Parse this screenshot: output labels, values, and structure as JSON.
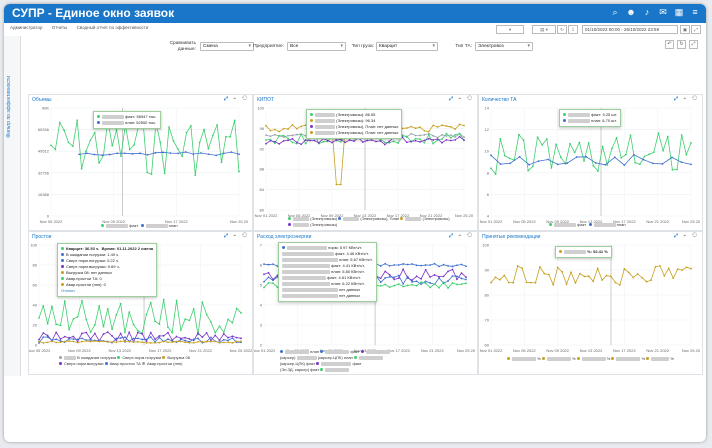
{
  "app": {
    "title": "СУПР - Единое окно заявок"
  },
  "breadcrumbs": [
    "Администратор",
    "Отчеты",
    "Сводный отчет по эффективности"
  ],
  "side_tab": {
    "label": "Фильтр по эффективности"
  },
  "date_range": "01/10/2022 00:00 - 26/10/2022 23:59",
  "filters": [
    {
      "label": "Сравнивать данные:",
      "value": "Смена"
    },
    {
      "label": "Предприятие:",
      "value": "Все"
    },
    {
      "label": "Тип груза:",
      "value": "Кварцит"
    },
    {
      "label": "Тип ТА:",
      "value": "Электровоз"
    }
  ],
  "colors": {
    "brand": "#1976c8",
    "green": "#3ecf6f",
    "blue": "#3f6fcf",
    "gold": "#c6a020",
    "purple": "#7b32c8",
    "gray": "#9aa3ad"
  },
  "charts": [
    {
      "title": "Объемы",
      "ylabels": [
        "90K",
        "65336",
        "49512",
        "32756",
        "16388",
        "0"
      ],
      "xlabels": [
        "Nov 05 2022",
        "Nov 09 2022",
        "Nov 17 2022",
        "Nov 25 20"
      ],
      "tooltip": [
        "факт: 56947 тыс.",
        "план: 52500 тыс."
      ],
      "legend": [
        "факт",
        "план"
      ]
    },
    {
      "title": "КИПОТ",
      "ylabels": [
        "100",
        "96",
        "92",
        "88",
        "84",
        "80"
      ],
      "xlabels": [
        "Nov 01 2022",
        "Nov 05 2022",
        "Nov 09 2022",
        "Nov 13 2022",
        "Nov 17 2022",
        "Nov 21 2022",
        "Nov 25 20"
      ],
      "tooltip": [
        "(Электровозы): 86.55",
        "(Электровозы): 96.34",
        "(Электровозы), План: нет данных",
        "(Электровозы), План: нет данных"
      ],
      "legend": [
        "(Электровозы)",
        "(Электровозы), План",
        "(Электровозы)",
        "(Электровозы)"
      ]
    },
    {
      "title": "Количество ТА",
      "ylabels": [
        "14",
        "12",
        "10",
        "8",
        "6",
        "4"
      ],
      "xlabels": [
        "Nov 01 2022",
        "Nov 05 2022",
        "Nov 09 2022",
        "Nov 13 2022",
        "Nov 17 2022",
        "Nov 21 2022",
        "Nov 25 20"
      ],
      "tooltip": [
        "факт: 9.25 шт.",
        "план: 8.70 шт."
      ],
      "legend": [
        "факт",
        "план"
      ]
    },
    {
      "title": "Простои",
      "ylabels": [
        "100",
        "80",
        "60",
        "40",
        "20",
        "0"
      ],
      "xlabels": [
        "Nov 05 2022",
        "Nov 09 2022",
        "Nov 13 2022",
        "Nov 17 2022",
        "Nov 21 2022",
        "Nov 25 2022"
      ],
      "tooltip": [
        "Кварцит: 36.53 ч.",
        "Время: 01.11.2022 2 смена",
        "В ожидании погрузки: 1.40 ч.",
        "Сверх норм.погрузки: 0.22 ч.",
        "Сверх норм.выгрузки: 9.69 ч.",
        "Выгрузка 08: нет данных",
        "Авар.простои ТА: 0",
        "Авар.простои (ппп): 0",
        "Отклон."
      ],
      "legend": [
        "В ожидании погрузки",
        "Сверх.норм.погрузки",
        "Выгрузка 08",
        "Сверх.норм.выгрузки",
        "Авар.простои ТА",
        "Авар.простои (ппп)"
      ]
    },
    {
      "title": "Расход электроэнергии",
      "ylabels": [
        "7",
        "6",
        "5",
        "4",
        "3",
        "2"
      ],
      "xlabels": [
        "Nov 01 2022",
        "Nov 05 2022",
        "Nov 09 2022",
        "Nov 13 2022",
        "Nov 17 2022",
        "Nov 21 2022",
        "Nov 25 20"
      ],
      "tooltip": [
        "норм: 5.97 КВт/ч/т.",
        "факт: 4.46 КВт/ч/т.",
        "план: 5.67 КВт/ч/т.",
        "факт: 4.41 КВт/ч/т.",
        "план: 5.80 КВт/ч/т.",
        "факт: 4.61 КВт/ч/т.",
        "план: 6.22 КВт/ч/т.",
        "нет данных",
        "нет данных"
      ],
      "legend": [
        "план",
        "факт",
        "(карьер)",
        "(карьер-ЦПК) план",
        "(карьер-ЦПК) факт",
        "(Эл.ЗД. карьер) факт",
        "факт"
      ]
    },
    {
      "title": "Принятые рекомендации",
      "ylabels": [
        "100",
        "90",
        "80",
        "70",
        "60"
      ],
      "xlabels": [
        "Nov 01 2022",
        "Nov 05 2022",
        "Nov 09 2022",
        "Nov 13 2022",
        "Nov 17 2022",
        "Nov 21 2022",
        "Nov 25 20"
      ],
      "tooltip": [
        "%: 92.41 %"
      ],
      "legend": [
        "%",
        "%",
        "%",
        "%",
        "%"
      ]
    }
  ]
}
